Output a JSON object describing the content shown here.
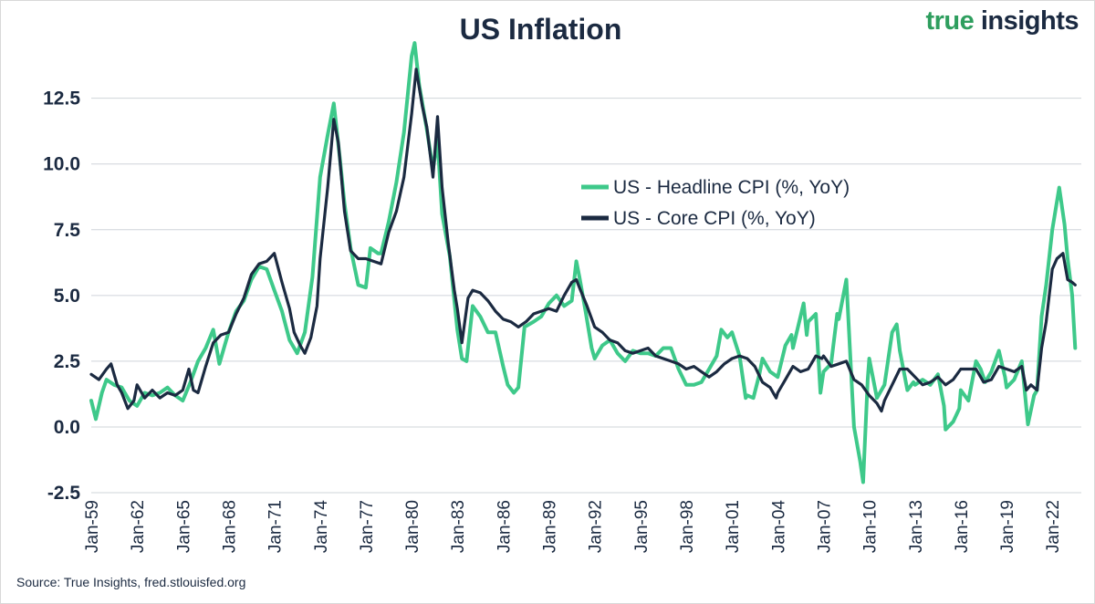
{
  "title": "US Inflation",
  "brand": {
    "part1": "true ",
    "part2": "insights"
  },
  "source": "Source: True Insights, fred.stlouisfed.org",
  "colors": {
    "headline": "#3ec98a",
    "core": "#1b2a41",
    "grid": "#cfd4da",
    "text": "#1b2a41",
    "brand_green": "#2e9e5e"
  },
  "chart_data": {
    "type": "line",
    "xlim": [
      1959,
      2023.9
    ],
    "ylim": [
      -2.5,
      14.5
    ],
    "y_ticks": [
      "-2.5",
      "0.0",
      "2.5",
      "5.0",
      "7.5",
      "10.0",
      "12.5"
    ],
    "x_tick_labels": [
      "Jan-59",
      "Jan-62",
      "Jan-65",
      "Jan-68",
      "Jan-71",
      "Jan-74",
      "Jan-77",
      "Jan-80",
      "Jan-83",
      "Jan-86",
      "Jan-89",
      "Jan-92",
      "Jan-95",
      "Jan-98",
      "Jan-01",
      "Jan-04",
      "Jan-07",
      "Jan-10",
      "Jan-13",
      "Jan-16",
      "Jan-19",
      "Jan-22"
    ],
    "grid": "horizontal",
    "legend_position": "center-right",
    "series": [
      {
        "name": "US - Headline CPI (%, YoY)",
        "points": [
          [
            1959,
            1.0
          ],
          [
            1959.3,
            0.3
          ],
          [
            1959.7,
            1.3
          ],
          [
            1960,
            1.8
          ],
          [
            1960.5,
            1.6
          ],
          [
            1961,
            1.5
          ],
          [
            1961.5,
            1.0
          ],
          [
            1962,
            0.8
          ],
          [
            1962.5,
            1.3
          ],
          [
            1963,
            1.2
          ],
          [
            1963.5,
            1.3
          ],
          [
            1964,
            1.5
          ],
          [
            1964.5,
            1.2
          ],
          [
            1965,
            1.0
          ],
          [
            1965.5,
            1.7
          ],
          [
            1966,
            2.5
          ],
          [
            1966.5,
            3.0
          ],
          [
            1967,
            3.7
          ],
          [
            1967.4,
            2.4
          ],
          [
            1967.8,
            3.2
          ],
          [
            1968,
            3.6
          ],
          [
            1968.5,
            4.4
          ],
          [
            1969,
            4.8
          ],
          [
            1969.5,
            5.6
          ],
          [
            1970,
            6.1
          ],
          [
            1970.5,
            6.0
          ],
          [
            1971,
            5.2
          ],
          [
            1971.5,
            4.4
          ],
          [
            1972,
            3.3
          ],
          [
            1972.5,
            2.8
          ],
          [
            1973,
            3.6
          ],
          [
            1973.5,
            5.7
          ],
          [
            1974,
            9.5
          ],
          [
            1974.5,
            11.1
          ],
          [
            1974.9,
            12.3
          ],
          [
            1975.3,
            10.2
          ],
          [
            1975.6,
            8.5
          ],
          [
            1976,
            6.8
          ],
          [
            1976.5,
            5.4
          ],
          [
            1977,
            5.3
          ],
          [
            1977.3,
            6.8
          ],
          [
            1977.8,
            6.6
          ],
          [
            1978,
            6.6
          ],
          [
            1978.5,
            7.8
          ],
          [
            1979,
            9.3
          ],
          [
            1979.5,
            11.2
          ],
          [
            1980,
            14.1
          ],
          [
            1980.2,
            14.6
          ],
          [
            1980.5,
            13.0
          ],
          [
            1981,
            11.3
          ],
          [
            1981.4,
            9.8
          ],
          [
            1981.7,
            10.9
          ],
          [
            1982,
            8.1
          ],
          [
            1982.5,
            6.5
          ],
          [
            1983,
            3.7
          ],
          [
            1983.3,
            2.6
          ],
          [
            1983.6,
            2.5
          ],
          [
            1984,
            4.6
          ],
          [
            1984.5,
            4.2
          ],
          [
            1985,
            3.6
          ],
          [
            1985.5,
            3.6
          ],
          [
            1986,
            2.3
          ],
          [
            1986.3,
            1.6
          ],
          [
            1986.7,
            1.3
          ],
          [
            1987,
            1.5
          ],
          [
            1987.4,
            3.8
          ],
          [
            1988,
            4.0
          ],
          [
            1988.5,
            4.2
          ],
          [
            1989,
            4.7
          ],
          [
            1989.5,
            5.0
          ],
          [
            1990,
            4.6
          ],
          [
            1990.5,
            4.8
          ],
          [
            1990.8,
            6.3
          ],
          [
            1991,
            5.7
          ],
          [
            1991.4,
            4.4
          ],
          [
            1991.8,
            3.0
          ],
          [
            1992,
            2.6
          ],
          [
            1992.5,
            3.1
          ],
          [
            1993,
            3.3
          ],
          [
            1993.5,
            2.8
          ],
          [
            1994,
            2.5
          ],
          [
            1994.5,
            2.9
          ],
          [
            1995,
            2.8
          ],
          [
            1995.5,
            2.8
          ],
          [
            1996,
            2.7
          ],
          [
            1996.5,
            3.0
          ],
          [
            1997,
            3.0
          ],
          [
            1997.5,
            2.2
          ],
          [
            1998,
            1.6
          ],
          [
            1998.5,
            1.6
          ],
          [
            1999,
            1.7
          ],
          [
            1999.5,
            2.2
          ],
          [
            2000,
            2.7
          ],
          [
            2000.3,
            3.7
          ],
          [
            2000.7,
            3.4
          ],
          [
            2001,
            3.6
          ],
          [
            2001.5,
            2.7
          ],
          [
            2001.9,
            1.1
          ],
          [
            2002,
            1.2
          ],
          [
            2002.4,
            1.1
          ],
          [
            2002.8,
            2.0
          ],
          [
            2003,
            2.6
          ],
          [
            2003.5,
            2.1
          ],
          [
            2004,
            1.9
          ],
          [
            2004.5,
            3.1
          ],
          [
            2004.9,
            3.5
          ],
          [
            2005,
            3.0
          ],
          [
            2005.7,
            4.7
          ],
          [
            2005.9,
            3.5
          ],
          [
            2006,
            4.0
          ],
          [
            2006.5,
            4.3
          ],
          [
            2006.8,
            1.3
          ],
          [
            2007,
            2.1
          ],
          [
            2007.5,
            2.4
          ],
          [
            2007.9,
            4.3
          ],
          [
            2008,
            4.1
          ],
          [
            2008.5,
            5.6
          ],
          [
            2008.9,
            1.1
          ],
          [
            2009,
            0.0
          ],
          [
            2009.4,
            -1.3
          ],
          [
            2009.6,
            -2.1
          ],
          [
            2009.9,
            1.8
          ],
          [
            2010,
            2.6
          ],
          [
            2010.5,
            1.1
          ],
          [
            2011,
            1.6
          ],
          [
            2011.5,
            3.6
          ],
          [
            2011.8,
            3.9
          ],
          [
            2012,
            2.9
          ],
          [
            2012.5,
            1.4
          ],
          [
            2012.9,
            1.7
          ],
          [
            2013,
            1.6
          ],
          [
            2013.5,
            1.8
          ],
          [
            2014,
            1.6
          ],
          [
            2014.5,
            2.0
          ],
          [
            2014.9,
            0.8
          ],
          [
            2015,
            -0.1
          ],
          [
            2015.5,
            0.2
          ],
          [
            2015.9,
            0.7
          ],
          [
            2016,
            1.4
          ],
          [
            2016.5,
            1.0
          ],
          [
            2017,
            2.5
          ],
          [
            2017.3,
            2.2
          ],
          [
            2017.6,
            1.7
          ],
          [
            2018,
            2.1
          ],
          [
            2018.5,
            2.9
          ],
          [
            2018.9,
            1.9
          ],
          [
            2019,
            1.5
          ],
          [
            2019.5,
            1.8
          ],
          [
            2020,
            2.5
          ],
          [
            2020.4,
            0.1
          ],
          [
            2020.8,
            1.2
          ],
          [
            2021,
            1.4
          ],
          [
            2021.3,
            4.2
          ],
          [
            2021.6,
            5.4
          ],
          [
            2022,
            7.5
          ],
          [
            2022.45,
            9.1
          ],
          [
            2022.8,
            7.7
          ],
          [
            2023,
            6.4
          ],
          [
            2023.3,
            5.0
          ],
          [
            2023.5,
            3.0
          ]
        ]
      },
      {
        "name": "US - Core CPI (%, YoY)",
        "points": [
          [
            1959,
            2.0
          ],
          [
            1959.5,
            1.8
          ],
          [
            1960,
            2.2
          ],
          [
            1960.3,
            2.4
          ],
          [
            1960.7,
            1.6
          ],
          [
            1961,
            1.3
          ],
          [
            1961.4,
            0.7
          ],
          [
            1961.8,
            1.0
          ],
          [
            1962,
            1.6
          ],
          [
            1962.5,
            1.1
          ],
          [
            1963,
            1.4
          ],
          [
            1963.5,
            1.1
          ],
          [
            1964,
            1.3
          ],
          [
            1964.5,
            1.2
          ],
          [
            1965,
            1.4
          ],
          [
            1965.4,
            2.2
          ],
          [
            1965.7,
            1.4
          ],
          [
            1966,
            1.3
          ],
          [
            1966.5,
            2.3
          ],
          [
            1967,
            3.2
          ],
          [
            1967.5,
            3.5
          ],
          [
            1968,
            3.6
          ],
          [
            1968.5,
            4.3
          ],
          [
            1969,
            4.9
          ],
          [
            1969.5,
            5.8
          ],
          [
            1970,
            6.2
          ],
          [
            1970.5,
            6.3
          ],
          [
            1971,
            6.6
          ],
          [
            1971.5,
            5.5
          ],
          [
            1972,
            4.5
          ],
          [
            1972.3,
            3.6
          ],
          [
            1972.7,
            3.1
          ],
          [
            1973,
            2.8
          ],
          [
            1973.4,
            3.4
          ],
          [
            1973.8,
            4.6
          ],
          [
            1974,
            6.4
          ],
          [
            1974.5,
            9.1
          ],
          [
            1974.9,
            11.7
          ],
          [
            1975.2,
            10.8
          ],
          [
            1975.6,
            8.2
          ],
          [
            1976,
            6.7
          ],
          [
            1976.5,
            6.4
          ],
          [
            1977,
            6.4
          ],
          [
            1977.5,
            6.3
          ],
          [
            1978,
            6.2
          ],
          [
            1978.5,
            7.4
          ],
          [
            1979,
            8.2
          ],
          [
            1979.5,
            9.5
          ],
          [
            1980,
            11.9
          ],
          [
            1980.3,
            13.6
          ],
          [
            1980.7,
            12.2
          ],
          [
            1981,
            11.4
          ],
          [
            1981.4,
            9.5
          ],
          [
            1981.7,
            11.8
          ],
          [
            1982,
            9.1
          ],
          [
            1982.4,
            7.0
          ],
          [
            1982.8,
            5.2
          ],
          [
            1983,
            4.5
          ],
          [
            1983.3,
            3.2
          ],
          [
            1983.7,
            4.9
          ],
          [
            1984,
            5.2
          ],
          [
            1984.5,
            5.1
          ],
          [
            1985,
            4.8
          ],
          [
            1985.5,
            4.4
          ],
          [
            1986,
            4.1
          ],
          [
            1986.5,
            4.0
          ],
          [
            1987,
            3.8
          ],
          [
            1987.5,
            4.0
          ],
          [
            1988,
            4.3
          ],
          [
            1988.5,
            4.4
          ],
          [
            1989,
            4.5
          ],
          [
            1989.5,
            4.4
          ],
          [
            1990,
            5.0
          ],
          [
            1990.5,
            5.5
          ],
          [
            1990.8,
            5.6
          ],
          [
            1991,
            5.3
          ],
          [
            1991.5,
            4.6
          ],
          [
            1992,
            3.8
          ],
          [
            1992.5,
            3.6
          ],
          [
            1993,
            3.3
          ],
          [
            1993.5,
            3.2
          ],
          [
            1994,
            2.9
          ],
          [
            1994.5,
            2.8
          ],
          [
            1995,
            2.9
          ],
          [
            1995.5,
            3.0
          ],
          [
            1996,
            2.7
          ],
          [
            1996.5,
            2.6
          ],
          [
            1997,
            2.5
          ],
          [
            1997.5,
            2.4
          ],
          [
            1998,
            2.2
          ],
          [
            1998.5,
            2.3
          ],
          [
            1999,
            2.1
          ],
          [
            1999.5,
            1.9
          ],
          [
            2000,
            2.1
          ],
          [
            2000.5,
            2.4
          ],
          [
            2001,
            2.6
          ],
          [
            2001.5,
            2.7
          ],
          [
            2002,
            2.6
          ],
          [
            2002.5,
            2.3
          ],
          [
            2003,
            1.7
          ],
          [
            2003.5,
            1.5
          ],
          [
            2003.9,
            1.1
          ],
          [
            2004,
            1.3
          ],
          [
            2004.5,
            1.8
          ],
          [
            2005,
            2.3
          ],
          [
            2005.5,
            2.1
          ],
          [
            2006,
            2.2
          ],
          [
            2006.5,
            2.7
          ],
          [
            2006.9,
            2.6
          ],
          [
            2007,
            2.7
          ],
          [
            2007.5,
            2.3
          ],
          [
            2008,
            2.4
          ],
          [
            2008.5,
            2.5
          ],
          [
            2009,
            1.8
          ],
          [
            2009.5,
            1.6
          ],
          [
            2010,
            1.2
          ],
          [
            2010.5,
            0.9
          ],
          [
            2010.8,
            0.6
          ],
          [
            2011,
            1.0
          ],
          [
            2011.5,
            1.6
          ],
          [
            2012,
            2.2
          ],
          [
            2012.5,
            2.2
          ],
          [
            2013,
            1.9
          ],
          [
            2013.5,
            1.6
          ],
          [
            2014,
            1.7
          ],
          [
            2014.5,
            1.9
          ],
          [
            2015,
            1.6
          ],
          [
            2015.5,
            1.8
          ],
          [
            2016,
            2.2
          ],
          [
            2016.5,
            2.2
          ],
          [
            2017,
            2.2
          ],
          [
            2017.5,
            1.7
          ],
          [
            2018,
            1.8
          ],
          [
            2018.5,
            2.3
          ],
          [
            2019,
            2.2
          ],
          [
            2019.5,
            2.1
          ],
          [
            2020,
            2.3
          ],
          [
            2020.3,
            1.4
          ],
          [
            2020.6,
            1.6
          ],
          [
            2021,
            1.4
          ],
          [
            2021.3,
            3.0
          ],
          [
            2021.6,
            4.0
          ],
          [
            2022,
            6.0
          ],
          [
            2022.3,
            6.4
          ],
          [
            2022.7,
            6.6
          ],
          [
            2023,
            5.6
          ],
          [
            2023.3,
            5.5
          ],
          [
            2023.5,
            5.4
          ]
        ]
      }
    ]
  }
}
